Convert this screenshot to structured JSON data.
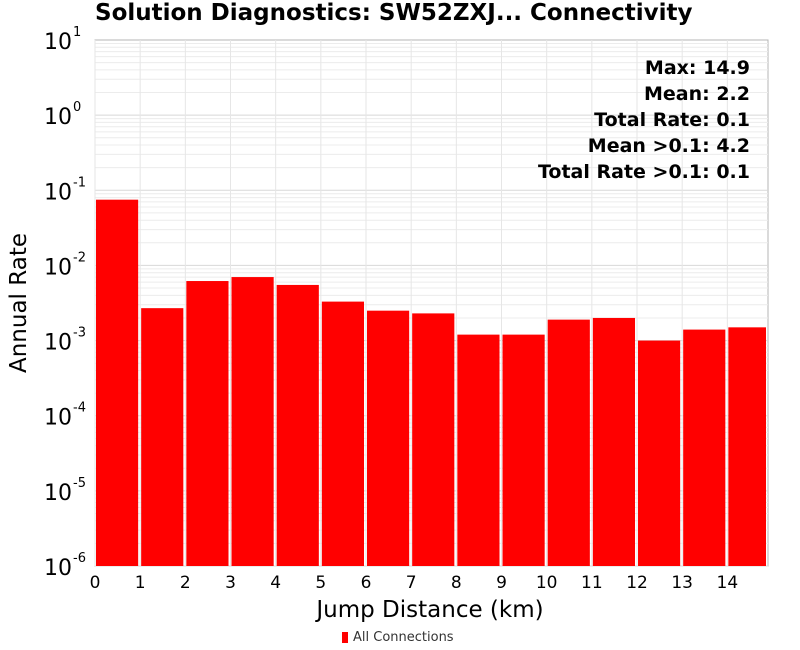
{
  "chart_data": {
    "type": "bar",
    "title": "Solution Diagnostics: SW52ZXJ... Connectivity",
    "xlabel": "Jump Distance (km)",
    "ylabel": "Annual Rate",
    "yscale": "log",
    "ylim": [
      1e-06,
      10
    ],
    "xlim": [
      0,
      14.9
    ],
    "x_ticks": [
      0,
      1,
      2,
      3,
      4,
      5,
      6,
      7,
      8,
      9,
      10,
      11,
      12,
      13,
      14
    ],
    "y_ticks": [
      {
        "base": "10",
        "exp": "1",
        "value": 10
      },
      {
        "base": "10",
        "exp": "0",
        "value": 1
      },
      {
        "base": "10",
        "exp": "-1",
        "value": 0.1
      },
      {
        "base": "10",
        "exp": "-2",
        "value": 0.01
      },
      {
        "base": "10",
        "exp": "-3",
        "value": 0.001
      },
      {
        "base": "10",
        "exp": "-4",
        "value": 0.0001
      },
      {
        "base": "10",
        "exp": "-5",
        "value": 1e-05
      },
      {
        "base": "10",
        "exp": "-6",
        "value": 1e-06
      }
    ],
    "bar_width": 1,
    "series": [
      {
        "name": "All Connections",
        "color": "#ff0000",
        "x": [
          0,
          1,
          2,
          3,
          4,
          5,
          6,
          7,
          8,
          9,
          10,
          11,
          12,
          13,
          14
        ],
        "values": [
          0.075,
          0.0027,
          0.0062,
          0.007,
          0.0055,
          0.0033,
          0.0025,
          0.0023,
          0.0012,
          0.0012,
          0.0019,
          0.002,
          0.001,
          0.0014,
          0.0015
        ]
      }
    ],
    "annotations": [
      "Max: 14.9",
      "Mean: 2.2",
      "Total Rate: 0.1",
      "Mean >0.1: 4.2",
      "Total Rate >0.1: 0.1"
    ],
    "grid": true,
    "legend_position": "bottom-center"
  }
}
